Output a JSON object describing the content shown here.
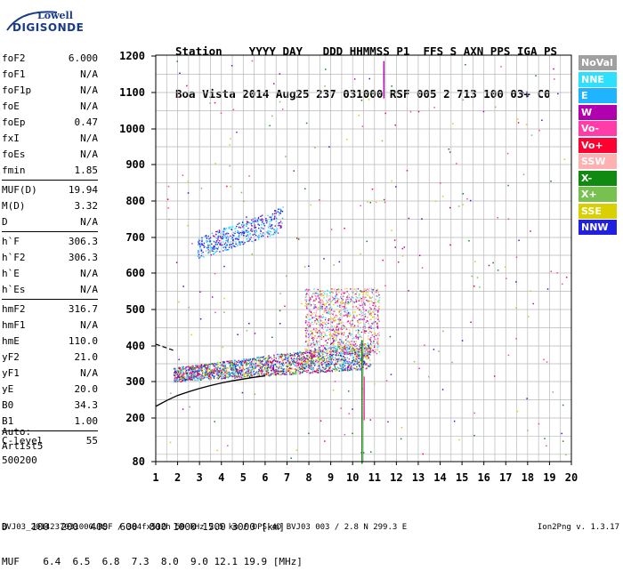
{
  "logo": {
    "line1": "Lowell",
    "line2": "DIGISONDE"
  },
  "header": {
    "labels": [
      "Station",
      "YYYY",
      "DAY",
      "DDD",
      "HHMMSS",
      "P1",
      "FFS",
      "S",
      "AXN",
      "PPS",
      "IGA",
      "PS"
    ],
    "values": [
      "Boa Vista",
      "2014",
      "Aug25",
      "237",
      "031000",
      "RSF",
      "005",
      "2",
      "713",
      "100",
      "03+",
      "C0"
    ]
  },
  "params": {
    "group1": [
      {
        "label": "foF2",
        "value": "6.000"
      },
      {
        "label": "foF1",
        "value": "N/A"
      },
      {
        "label": "foF1p",
        "value": "N/A"
      },
      {
        "label": "foE",
        "value": "N/A"
      },
      {
        "label": "foEp",
        "value": "0.47"
      },
      {
        "label": "fxI",
        "value": "N/A"
      },
      {
        "label": "foEs",
        "value": "N/A"
      },
      {
        "label": "fmin",
        "value": "1.85"
      }
    ],
    "group2": [
      {
        "label": "MUF(D)",
        "value": "19.94"
      },
      {
        "label": "M(D)",
        "value": "3.32"
      },
      {
        "label": "D",
        "value": "N/A"
      }
    ],
    "group3": [
      {
        "label": "h`F",
        "value": "306.3"
      },
      {
        "label": "h`F2",
        "value": "306.3"
      },
      {
        "label": "h`E",
        "value": "N/A"
      },
      {
        "label": "h`Es",
        "value": "N/A"
      }
    ],
    "group4": [
      {
        "label": "hmF2",
        "value": "316.7"
      },
      {
        "label": "hmF1",
        "value": "N/A"
      },
      {
        "label": "hmE",
        "value": "110.0"
      },
      {
        "label": "yF2",
        "value": "21.0"
      },
      {
        "label": "yF1",
        "value": "N/A"
      },
      {
        "label": "yE",
        "value": "20.0"
      },
      {
        "label": "B0",
        "value": "34.3"
      },
      {
        "label": "B1",
        "value": "1.00"
      }
    ],
    "group5": [
      {
        "label": "C-level",
        "value": "55"
      }
    ]
  },
  "auto": {
    "line1": "Auto:",
    "line2": "Artist5",
    "line3": "500200"
  },
  "dmuf": {
    "d_label": "D",
    "d_values": [
      "100",
      "200",
      "400",
      "600",
      "800",
      "1000",
      "1500",
      "3000"
    ],
    "d_unit": "[km]",
    "muf_label": "MUF",
    "muf_values": [
      "6.4",
      "6.5",
      "6.8",
      "7.3",
      "8.0",
      "9.0",
      "12.1",
      "19.9"
    ],
    "muf_unit": "[MHz]"
  },
  "footer": "BVJ03_2014237031000.RSF / 384fx512h 50 kHz 2.5 km / DPS-4D BVJ03 003 / 2.8 N 299.3 E",
  "version": "Ion2Png v. 1.3.17",
  "legend": [
    {
      "label": "NoVal",
      "color": "#a0a0a0"
    },
    {
      "label": "NNE",
      "color": "#2ee0ff"
    },
    {
      "label": "E",
      "color": "#1fb4ff"
    },
    {
      "label": "W",
      "color": "#b000b0"
    },
    {
      "label": "Vo-",
      "color": "#ff3ca8"
    },
    {
      "label": "Vo+",
      "color": "#ff0030"
    },
    {
      "label": "SSW",
      "color": "#ffb0b0"
    },
    {
      "label": "X-",
      "color": "#108a10"
    },
    {
      "label": "X+",
      "color": "#78c050"
    },
    {
      "label": "SSE",
      "color": "#d8d000"
    },
    {
      "label": "NNW",
      "color": "#2020e0"
    }
  ],
  "chart_data": {
    "type": "scatter",
    "xlim": [
      1,
      20
    ],
    "ylim": [
      80,
      1200
    ],
    "x_ticks": [
      1,
      2,
      3,
      4,
      5,
      6,
      7,
      8,
      9,
      10,
      11,
      12,
      13,
      14,
      15,
      16,
      17,
      18,
      19,
      20
    ],
    "y_ticks": [
      80,
      200,
      300,
      400,
      500,
      600,
      700,
      800,
      900,
      1000,
      1100,
      1200
    ],
    "x_tick_labels": [
      "1",
      "2",
      "3",
      "4",
      "5",
      "6",
      "7",
      "8",
      "9",
      "10",
      "11",
      "12",
      "13",
      "14",
      "15",
      "16",
      "17",
      "18",
      "19",
      "20"
    ],
    "y_tick_labels": [
      "80",
      "200",
      "300",
      "400",
      "500",
      "600",
      "700",
      "800",
      "900",
      "1000",
      "1100",
      "1200"
    ],
    "grid": true,
    "echo_regions": [
      {
        "name": "F-trace",
        "freq_range": [
          1.8,
          10.8
        ],
        "height_range": [
          300,
          420
        ],
        "colors": [
          "#2ee0ff",
          "#1fb4ff",
          "#b000b0",
          "#ff3ca8",
          "#ff0030",
          "#108a10",
          "#2020e0",
          "#d8d000"
        ]
      },
      {
        "name": "F-spread-high",
        "freq_range": [
          7.8,
          11.2
        ],
        "height_range": [
          380,
          560
        ],
        "colors": [
          "#b000b0",
          "#ff3ca8",
          "#d8d000",
          "#ffb0b0",
          "#2ee0ff"
        ]
      },
      {
        "name": "2F-trace",
        "freq_range": [
          2.9,
          6.8
        ],
        "height_range": [
          640,
          780
        ],
        "colors": [
          "#2020e0",
          "#1fb4ff",
          "#b000b0",
          "#2ee0ff"
        ]
      },
      {
        "name": "ordinary-profile",
        "freq_range": [
          1.0,
          6.0
        ],
        "height_range": [
          230,
          320
        ],
        "colors": [
          "#000000"
        ]
      }
    ],
    "profile_curve": {
      "x": [
        1.0,
        1.5,
        2.0,
        2.5,
        3.0,
        3.5,
        4.0,
        4.5,
        5.0,
        5.5,
        6.0
      ],
      "y": [
        232,
        248,
        262,
        272,
        281,
        289,
        296,
        302,
        307,
        312,
        316
      ]
    }
  }
}
